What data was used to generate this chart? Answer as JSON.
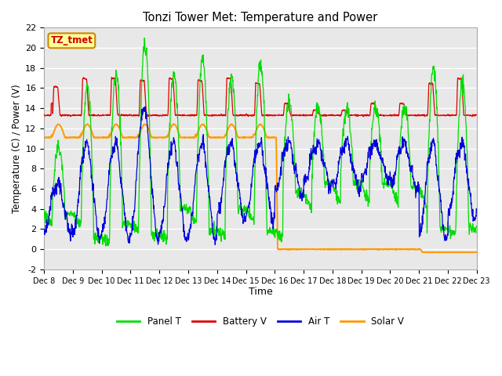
{
  "title": "Tonzi Tower Met: Temperature and Power",
  "xlabel": "Time",
  "ylabel": "Temperature (C) / Power (V)",
  "ylim": [
    -2,
    22
  ],
  "yticks": [
    -2,
    0,
    2,
    4,
    6,
    8,
    10,
    12,
    14,
    16,
    18,
    20,
    22
  ],
  "xtick_labels": [
    "Dec 8",
    "Dec 9",
    "Dec 10",
    "Dec 11",
    "Dec 12",
    "Dec 13",
    "Dec 14",
    "Dec 15",
    "Dec 16",
    "Dec 17",
    "Dec 18",
    "Dec 19",
    "Dec 20",
    "Dec 21",
    "Dec 22",
    "Dec 23"
  ],
  "legend_labels": [
    "Panel T",
    "Battery V",
    "Air T",
    "Solar V"
  ],
  "legend_colors": [
    "#00dd00",
    "#dd0000",
    "#0000dd",
    "#ff9900"
  ],
  "panel_t_color": "#00dd00",
  "battery_v_color": "#dd0000",
  "air_t_color": "#0000dd",
  "solar_v_color": "#ff9900",
  "plot_bg_color": "#e8e8e8",
  "annotation_text": "TZ_tmet",
  "annotation_facecolor": "#ffff99",
  "annotation_edgecolor": "#cc8800",
  "annotation_textcolor": "#cc0000"
}
